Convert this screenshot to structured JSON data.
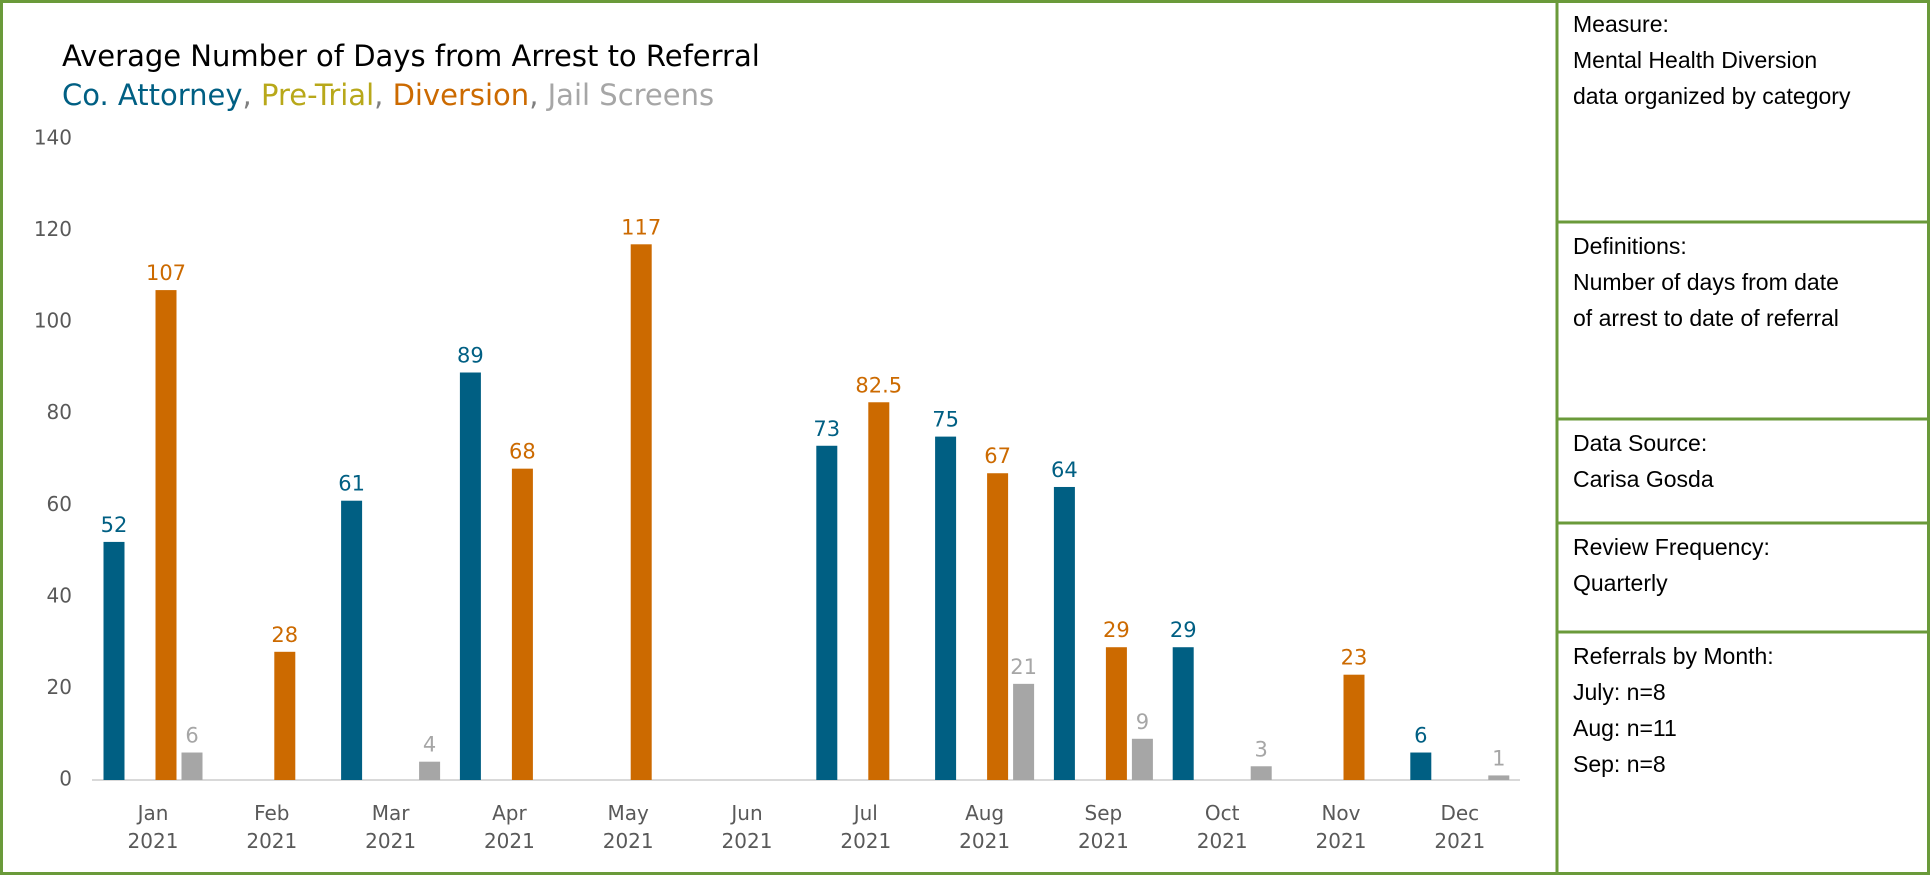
{
  "chart_data": {
    "type": "bar",
    "title": "Average Number of Days from Arrest to Referral",
    "legend_separator": ", ",
    "categories": [
      "Jan 2021",
      "Feb 2021",
      "Mar 2021",
      "Apr 2021",
      "May 2021",
      "Jun 2021",
      "Jul 2021",
      "Aug 2021",
      "Sep 2021",
      "Oct 2021",
      "Nov 2021",
      "Dec 2021"
    ],
    "series": [
      {
        "name": "Co. Attorney",
        "color": "#005f83",
        "values": [
          52,
          null,
          61,
          89,
          null,
          null,
          73,
          75,
          64,
          29,
          null,
          6
        ]
      },
      {
        "name": "Pre-Trial",
        "color": "#b8a81a",
        "values": [
          null,
          null,
          null,
          null,
          null,
          null,
          null,
          null,
          null,
          null,
          null,
          null
        ]
      },
      {
        "name": "Diversion",
        "color": "#cc6a00",
        "values": [
          107,
          28,
          null,
          68,
          117,
          null,
          82.5,
          67,
          29,
          null,
          23,
          null
        ]
      },
      {
        "name": "Jail Screens",
        "color": "#a6a6a6",
        "values": [
          6,
          null,
          4,
          null,
          null,
          null,
          null,
          21,
          9,
          3,
          null,
          1
        ]
      }
    ],
    "ylim": [
      0,
      140
    ],
    "yticks": [
      0,
      20,
      40,
      60,
      80,
      100,
      120,
      140
    ],
    "grid": false
  },
  "side_panel": [
    {
      "heading": "Measure:",
      "lines": [
        "Mental Health Diversion",
        "data organized by category"
      ]
    },
    {
      "heading": "Definitions:",
      "lines": [
        "Number of days from date",
        "of arrest to date of referral"
      ]
    },
    {
      "heading": "Data Source:",
      "lines": [
        "Carisa Gosda"
      ]
    },
    {
      "heading": "Review Frequency:",
      "lines": [
        "Quarterly"
      ]
    },
    {
      "heading": "Referrals by Month:",
      "lines": [
        "July: n=8",
        "Aug: n=11",
        "Sep: n=8"
      ]
    }
  ]
}
